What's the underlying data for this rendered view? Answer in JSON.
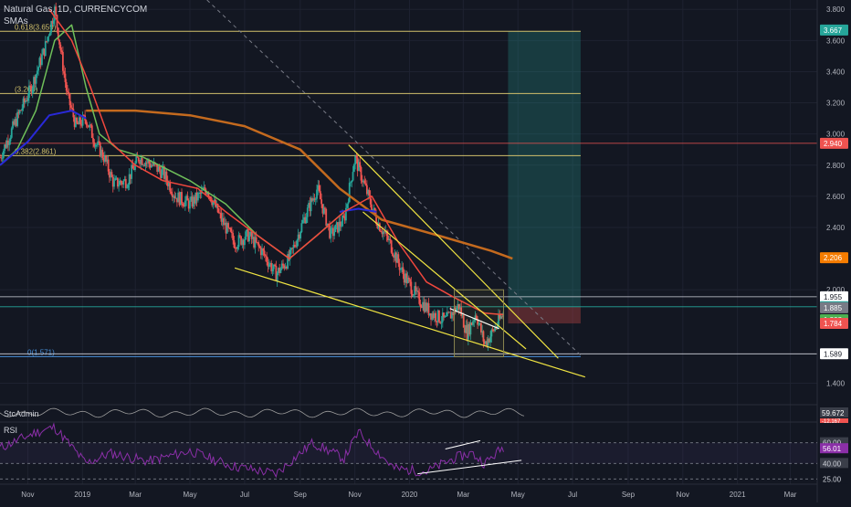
{
  "header": {
    "symbol": "Natural Gas, 1D, CURRENCYCOM",
    "indicator": "SMAs"
  },
  "colors": {
    "bg": "#131722",
    "grid": "#1e2230",
    "up": "#26a69a",
    "down": "#ef5350",
    "fib": "#d1c06b",
    "sma_red": "#f0473d",
    "sma_green": "#6fbf5a",
    "sma_blue": "#2929d8",
    "sma_orange": "#c46a1e",
    "wedge": "#f0e442",
    "rsi": "#8b2fa8"
  },
  "chart_data": {
    "type": "candlestick",
    "y_axis": {
      "ylim": [
        1.28,
        3.86
      ],
      "ticks": [
        "3.800",
        "3.600",
        "3.400",
        "3.200",
        "3.000",
        "2.800",
        "2.600",
        "2.400",
        "2.000",
        "1.400"
      ]
    },
    "x_axis": {
      "ticks": [
        "Nov",
        "2019",
        "Mar",
        "May",
        "Jul",
        "Sep",
        "Nov",
        "2020",
        "Mar",
        "May",
        "Jul",
        "Sep",
        "Nov",
        "2021",
        "Mar"
      ],
      "tick_dates": [
        "2018-11",
        "2019-01",
        "2019-03",
        "2019-05",
        "2019-07",
        "2019-09",
        "2019-11",
        "2020-01",
        "2020-03",
        "2020-05",
        "2020-07",
        "2020-09",
        "2020-11",
        "2021-01",
        "2021-03"
      ]
    },
    "fib_levels": [
      {
        "label": "0.618(3.659)",
        "value": 3.659
      },
      {
        "label": "(3.260)",
        "value": 3.26
      },
      {
        "label": "0.382(2.861)",
        "value": 2.861
      },
      {
        "label": "0(1.571)",
        "value": 1.571
      }
    ],
    "price_tags": [
      {
        "label": "3.667",
        "value": 3.667,
        "color": "#26a69a"
      },
      {
        "label": "2.940",
        "value": 2.94,
        "color": "#ef5350"
      },
      {
        "label": "2.206",
        "value": 2.206,
        "color": "#f57c00"
      },
      {
        "label": "1.955",
        "value": 1.955,
        "color": "#ffffff"
      },
      {
        "label": "1.891",
        "value": 1.891,
        "color": "#26a69a"
      },
      {
        "label": "1.885",
        "value": 1.885,
        "color": "#787b86"
      },
      {
        "label": "1.808",
        "value": 1.808,
        "color": "#4caf50"
      },
      {
        "label": "1.784",
        "value": 1.784,
        "color": "#ef5350"
      },
      {
        "label": "1.589",
        "value": 1.589,
        "color": "#ffffff"
      }
    ],
    "horizontal_lines": [
      2.94,
      1.955,
      1.891,
      1.589
    ],
    "wedge_lines": [
      {
        "from": [
          "2019-06-20",
          2.14
        ],
        "to": [
          "2020-07-15",
          1.44
        ]
      },
      {
        "from": [
          "2019-10-25",
          2.93
        ],
        "to": [
          "2020-06-15",
          1.56
        ]
      },
      {
        "from": [
          "2019-11-10",
          2.5
        ],
        "to": [
          "2020-05-10",
          1.62
        ]
      },
      {
        "from": [
          "2020-02-15",
          1.88
        ],
        "to": [
          "2020-04-10",
          1.75
        ]
      }
    ],
    "trend_dashed": {
      "from": [
        "2019-05-20",
        3.86
      ],
      "to": [
        "2020-07-10",
        1.58
      ]
    },
    "position": {
      "entry": 1.891,
      "target": 3.659,
      "stop": 1.784,
      "start": "2020-04-20",
      "end": "2020-07-10"
    },
    "wedge_box": {
      "start": "2020-02-20",
      "end": "2020-04-15",
      "high": 2.0,
      "low": 1.57
    },
    "price_path": [
      [
        "2018-10-01",
        2.85
      ],
      [
        "2018-10-20",
        3.1
      ],
      [
        "2018-11-05",
        3.3
      ],
      [
        "2018-11-20",
        3.55
      ],
      [
        "2018-12-01",
        3.8
      ],
      [
        "2018-12-15",
        3.25
      ],
      [
        "2018-12-25",
        3.05
      ],
      [
        "2019-01-05",
        3.1
      ],
      [
        "2019-01-15",
        2.95
      ],
      [
        "2019-01-25",
        2.85
      ],
      [
        "2019-02-05",
        2.68
      ],
      [
        "2019-02-20",
        2.7
      ],
      [
        "2019-03-05",
        2.85
      ],
      [
        "2019-03-20",
        2.8
      ],
      [
        "2019-04-01",
        2.75
      ],
      [
        "2019-04-15",
        2.6
      ],
      [
        "2019-05-01",
        2.55
      ],
      [
        "2019-05-20",
        2.65
      ],
      [
        "2019-06-05",
        2.45
      ],
      [
        "2019-06-20",
        2.3
      ],
      [
        "2019-07-05",
        2.35
      ],
      [
        "2019-07-20",
        2.25
      ],
      [
        "2019-08-05",
        2.1
      ],
      [
        "2019-08-20",
        2.2
      ],
      [
        "2019-09-05",
        2.45
      ],
      [
        "2019-09-20",
        2.65
      ],
      [
        "2019-10-05",
        2.35
      ],
      [
        "2019-10-20",
        2.45
      ],
      [
        "2019-11-01",
        2.85
      ],
      [
        "2019-11-10",
        2.7
      ],
      [
        "2019-11-25",
        2.45
      ],
      [
        "2019-12-10",
        2.3
      ],
      [
        "2019-12-25",
        2.1
      ],
      [
        "2020-01-10",
        1.95
      ],
      [
        "2020-01-25",
        1.85
      ],
      [
        "2020-02-10",
        1.8
      ],
      [
        "2020-02-25",
        1.9
      ],
      [
        "2020-03-05",
        1.72
      ],
      [
        "2020-03-15",
        1.85
      ],
      [
        "2020-03-25",
        1.65
      ],
      [
        "2020-04-05",
        1.75
      ],
      [
        "2020-04-15",
        1.85
      ]
    ],
    "sma_red": [
      [
        "2018-11-25",
        3.8
      ],
      [
        "2018-12-20",
        3.6
      ],
      [
        "2019-01-10",
        3.3
      ],
      [
        "2019-02-01",
        2.95
      ],
      [
        "2019-03-01",
        2.8
      ],
      [
        "2019-04-01",
        2.7
      ],
      [
        "2019-05-10",
        2.65
      ],
      [
        "2019-06-10",
        2.5
      ],
      [
        "2019-07-15",
        2.35
      ],
      [
        "2019-08-20",
        2.2
      ],
      [
        "2019-09-20",
        2.35
      ],
      [
        "2019-10-20",
        2.5
      ],
      [
        "2019-11-20",
        2.6
      ],
      [
        "2019-12-20",
        2.3
      ],
      [
        "2020-01-20",
        2.05
      ],
      [
        "2020-02-20",
        1.95
      ],
      [
        "2020-03-25",
        1.85
      ],
      [
        "2020-04-15",
        1.84
      ]
    ],
    "sma_green": [
      [
        "2018-10-01",
        2.8
      ],
      [
        "2018-10-20",
        2.9
      ],
      [
        "2018-11-10",
        3.15
      ],
      [
        "2018-12-01",
        3.6
      ],
      [
        "2018-12-20",
        3.7
      ],
      [
        "2019-01-05",
        3.3
      ],
      [
        "2019-01-20",
        3.0
      ],
      [
        "2019-02-10",
        2.9
      ],
      [
        "2019-03-10",
        2.85
      ],
      [
        "2019-05-01",
        2.7
      ],
      [
        "2019-06-10",
        2.55
      ],
      [
        "2019-07-15",
        2.35
      ],
      [
        "2019-08-20",
        2.2
      ],
      [
        "2019-09-20",
        2.35
      ],
      [
        "2019-10-20",
        2.5
      ]
    ],
    "sma_blue": [
      [
        "2018-10-01",
        2.8
      ],
      [
        "2018-11-01",
        2.95
      ],
      [
        "2018-11-25",
        3.12
      ],
      [
        "2018-12-20",
        3.15
      ],
      [
        "2019-01-05",
        3.1
      ]
    ],
    "sma_blue2": [
      [
        "2019-10-15",
        2.5
      ],
      [
        "2019-11-05",
        2.52
      ],
      [
        "2019-11-25",
        2.5
      ]
    ],
    "sma_orange": [
      [
        "2019-01-05",
        3.15
      ],
      [
        "2019-03-01",
        3.15
      ],
      [
        "2019-05-01",
        3.12
      ],
      [
        "2019-07-01",
        3.05
      ],
      [
        "2019-09-01",
        2.9
      ],
      [
        "2019-10-15",
        2.65
      ],
      [
        "2019-12-01",
        2.45
      ],
      [
        "2020-02-01",
        2.35
      ],
      [
        "2020-04-01",
        2.25
      ],
      [
        "2020-04-25",
        2.2
      ]
    ],
    "stc": {
      "label": "StcAdmin",
      "tag": "59.672",
      "tag2": "-12.167"
    },
    "rsi": {
      "label": "RSI",
      "levels": [
        "60.00",
        "40.00",
        "25.00"
      ],
      "value_tag": "56.01",
      "series": [
        [
          "2018-10-01",
          55
        ],
        [
          "2018-11-10",
          70
        ],
        [
          "2018-12-01",
          75
        ],
        [
          "2019-01-05",
          40
        ],
        [
          "2019-02-01",
          50
        ],
        [
          "2019-03-15",
          42
        ],
        [
          "2019-05-01",
          52
        ],
        [
          "2019-06-15",
          38
        ],
        [
          "2019-08-05",
          30
        ],
        [
          "2019-09-15",
          60
        ],
        [
          "2019-10-20",
          45
        ],
        [
          "2019-11-05",
          70
        ],
        [
          "2019-12-15",
          35
        ],
        [
          "2020-01-20",
          32
        ],
        [
          "2020-02-20",
          45
        ],
        [
          "2020-03-10",
          50
        ],
        [
          "2020-03-25",
          40
        ],
        [
          "2020-04-15",
          56
        ]
      ],
      "div_line1": {
        "from": [
          "2020-02-10",
          54
        ],
        "to": [
          "2020-03-20",
          62
        ]
      },
      "div_line2": {
        "from": [
          "2020-01-10",
          30
        ],
        "to": [
          "2020-05-05",
          43
        ]
      }
    }
  }
}
